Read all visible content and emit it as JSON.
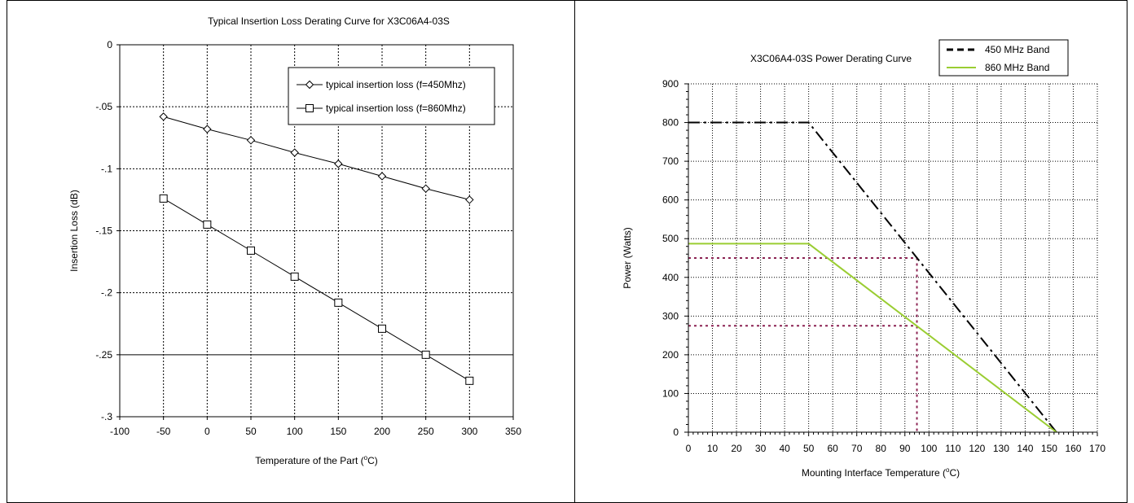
{
  "chart_data": [
    {
      "type": "line",
      "title": "Typical Insertion Loss Derating Curve for X3C06A4-03S",
      "xlabel_pre": "Temperature of the Part (",
      "xlabel_sup": "o",
      "xlabel_post": "C)",
      "ylabel": "Insertion Loss (dB)",
      "xlim": [
        -100,
        350
      ],
      "ylim": [
        -0.3,
        0
      ],
      "x_ticks": [
        -100,
        -50,
        0,
        50,
        100,
        150,
        200,
        250,
        300,
        350
      ],
      "y_ticks": [
        0,
        -0.05,
        -0.1,
        -0.15,
        -0.2,
        -0.25,
        -0.3
      ],
      "grid": true,
      "legend_position": "top-right",
      "x": [
        -50,
        0,
        50,
        100,
        150,
        200,
        250,
        300
      ],
      "series": [
        {
          "name": "typical insertion loss (f=450Mhz)",
          "marker": "diamond",
          "values": [
            -0.058,
            -0.068,
            -0.077,
            -0.087,
            -0.096,
            -0.106,
            -0.116,
            -0.125
          ]
        },
        {
          "name": "typical insertion loss (f=860Mhz)",
          "marker": "square",
          "values": [
            -0.124,
            -0.145,
            -0.166,
            -0.187,
            -0.208,
            -0.229,
            -0.25,
            -0.271
          ]
        }
      ]
    },
    {
      "type": "line",
      "title": "X3C06A4-03S Power Derating Curve",
      "xlabel_pre": "Mounting Interface Temperature (",
      "xlabel_sup": "o",
      "xlabel_post": "C)",
      "ylabel": "Power (Watts)",
      "xlim": [
        0,
        170
      ],
      "ylim": [
        0,
        900
      ],
      "x_ticks": [
        0,
        10,
        20,
        30,
        40,
        50,
        60,
        70,
        80,
        90,
        100,
        110,
        120,
        130,
        140,
        150,
        160,
        170
      ],
      "y_ticks": [
        0,
        100,
        200,
        300,
        400,
        500,
        600,
        700,
        800,
        900
      ],
      "grid": true,
      "legend_position": "top-right",
      "series": [
        {
          "name": "450 MHz Band",
          "color": "#000000",
          "style": "dash-dot",
          "points": [
            [
              0,
              800
            ],
            [
              50,
              800
            ],
            [
              153,
              0
            ]
          ]
        },
        {
          "name": "860 MHz Band",
          "color": "#9ACD32",
          "style": "solid",
          "points": [
            [
              0,
              487
            ],
            [
              50,
              487
            ],
            [
              153,
              0
            ]
          ]
        }
      ],
      "annotations": [
        {
          "color": "#8B2252",
          "style": "dotted",
          "points": [
            [
              0,
              450
            ],
            [
              95,
              450
            ],
            [
              95,
              0
            ]
          ]
        },
        {
          "color": "#8B2252",
          "style": "dotted",
          "points": [
            [
              0,
              275
            ],
            [
              95,
              275
            ]
          ]
        }
      ]
    }
  ]
}
